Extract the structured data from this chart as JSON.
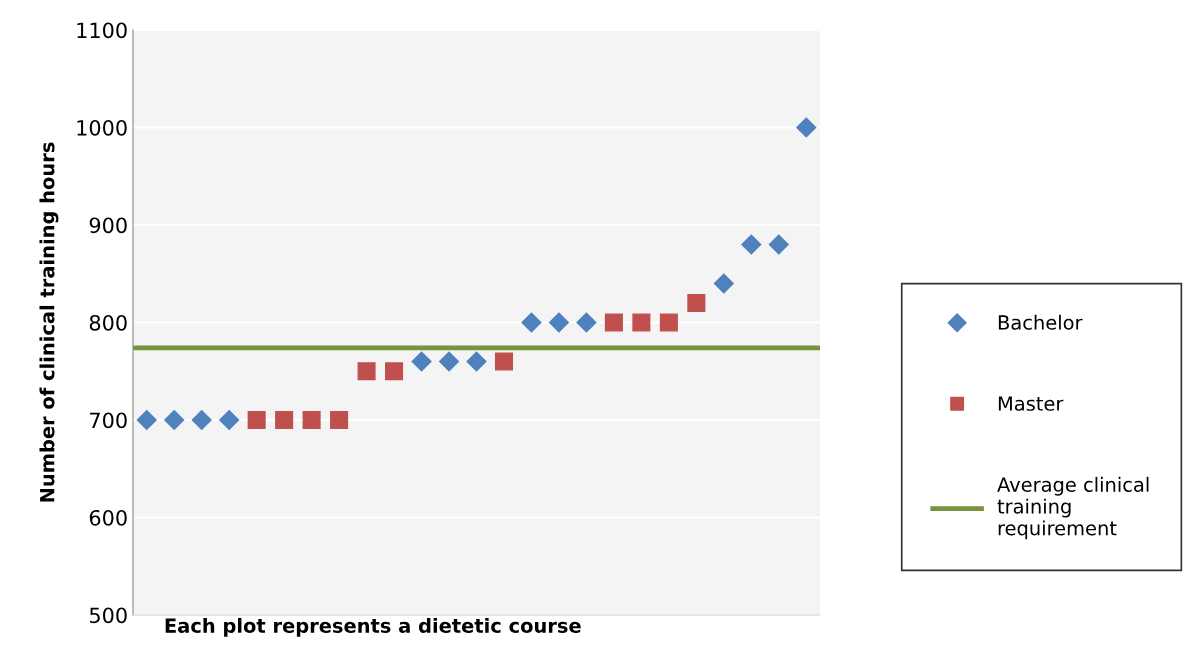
{
  "chart_data": {
    "type": "scatter",
    "xlabel": "Each plot represents a dietetic course",
    "ylabel": "Number of clinical training hours",
    "categories": [
      null,
      null,
      null,
      null,
      null,
      null,
      null,
      null,
      null,
      null,
      null,
      null,
      null,
      null,
      null,
      null,
      null,
      null,
      null,
      null,
      null,
      null,
      null,
      null,
      null
    ],
    "series": [
      {
        "name": "Bachelor",
        "color": "#4f81bd",
        "marker": "diamond",
        "values": [
          700,
          700,
          700,
          700,
          null,
          null,
          null,
          null,
          null,
          null,
          760,
          760,
          760,
          null,
          800,
          800,
          800,
          null,
          null,
          null,
          null,
          840,
          880,
          880,
          1000
        ]
      },
      {
        "name": "Master",
        "color": "#c0504d",
        "marker": "square",
        "values": [
          null,
          null,
          null,
          null,
          700,
          700,
          700,
          700,
          750,
          750,
          null,
          null,
          null,
          760,
          null,
          null,
          null,
          800,
          800,
          800,
          820,
          null,
          null,
          null,
          null
        ]
      }
    ],
    "ref_lines": [
      {
        "axis": "y",
        "value": 774,
        "label": "Average clinical training requirement",
        "color": "#77933c",
        "line_style": "solid"
      }
    ],
    "ylim": [
      500,
      1100
    ],
    "yticks": [
      500,
      600,
      700,
      800,
      900,
      1000,
      1100
    ],
    "grid": "y",
    "legend": "right",
    "tick_labels": "y"
  }
}
